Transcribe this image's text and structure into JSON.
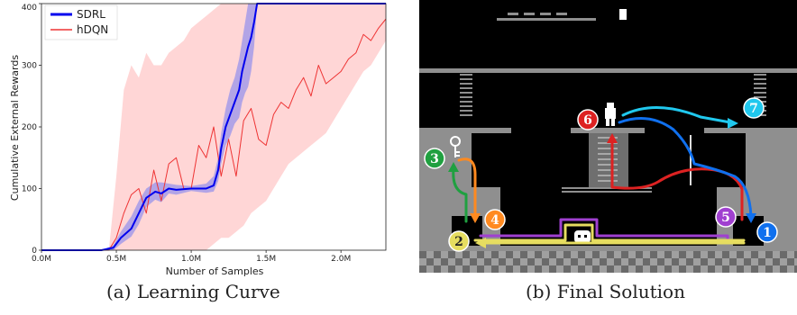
{
  "captions": {
    "a": "(a) Learning Curve",
    "b": "(b) Final Solution"
  },
  "chart_data": {
    "type": "line",
    "xlabel": "Number of Samples",
    "ylabel": "Cumulative External Rewards",
    "xlim": [
      0,
      2300000
    ],
    "ylim": [
      0,
      400
    ],
    "x_ticks": [
      0,
      500000,
      1000000,
      1500000,
      2000000
    ],
    "x_tick_labels": [
      "0.0M",
      "0.5M",
      "1.0M",
      "1.5M",
      "2.0M"
    ],
    "y_ticks": [
      0,
      100,
      200,
      300,
      400
    ],
    "y_tick_labels": [
      "0",
      "100",
      "200",
      "300",
      "400"
    ],
    "legend_position": "top-left",
    "grid": false,
    "series": [
      {
        "name": "SDRL",
        "color": "#0000ee",
        "band_color": "#8888ee",
        "x": [
          0,
          400000,
          480000,
          530000,
          600000,
          650000,
          700000,
          760000,
          800000,
          850000,
          900000,
          1000000,
          1100000,
          1150000,
          1180000,
          1200000,
          1230000,
          1260000,
          1290000,
          1320000,
          1340000,
          1360000,
          1380000,
          1400000,
          1420000,
          1440000,
          2300000
        ],
        "y": [
          0,
          0,
          4,
          20,
          35,
          60,
          85,
          95,
          92,
          100,
          98,
          100,
          100,
          105,
          130,
          165,
          200,
          220,
          240,
          260,
          290,
          310,
          330,
          345,
          370,
          400,
          400
        ],
        "upper": [
          0,
          0,
          8,
          30,
          55,
          80,
          100,
          110,
          110,
          108,
          106,
          104,
          108,
          120,
          150,
          190,
          230,
          260,
          280,
          310,
          340,
          370,
          400,
          400,
          400,
          400,
          400
        ],
        "lower": [
          0,
          0,
          0,
          10,
          22,
          42,
          70,
          82,
          78,
          92,
          90,
          96,
          93,
          95,
          112,
          140,
          170,
          185,
          205,
          215,
          240,
          255,
          265,
          290,
          330,
          400,
          400
        ]
      },
      {
        "name": "hDQN",
        "color": "#ee3333",
        "band_color": "#ffcccc",
        "x": [
          0,
          450000,
          500000,
          550000,
          600000,
          650000,
          700000,
          750000,
          800000,
          850000,
          900000,
          950000,
          1000000,
          1050000,
          1100000,
          1150000,
          1200000,
          1250000,
          1300000,
          1350000,
          1400000,
          1450000,
          1500000,
          1550000,
          1600000,
          1650000,
          1700000,
          1750000,
          1800000,
          1850000,
          1900000,
          1950000,
          2000000,
          2050000,
          2100000,
          2150000,
          2200000,
          2250000,
          2300000
        ],
        "y": [
          0,
          0,
          20,
          60,
          90,
          100,
          60,
          130,
          80,
          140,
          150,
          100,
          100,
          170,
          150,
          200,
          120,
          180,
          120,
          210,
          230,
          180,
          170,
          220,
          240,
          230,
          260,
          280,
          250,
          300,
          270,
          280,
          290,
          310,
          320,
          350,
          340,
          360,
          375
        ],
        "upper": [
          0,
          0,
          120,
          260,
          300,
          280,
          320,
          300,
          300,
          320,
          330,
          340,
          360,
          370,
          380,
          390,
          400,
          400,
          400,
          400,
          400,
          400,
          400,
          400,
          400,
          400,
          400,
          400,
          400,
          400,
          400,
          400,
          400,
          400,
          400,
          400,
          400,
          400,
          400
        ],
        "lower": [
          0,
          0,
          0,
          0,
          0,
          0,
          0,
          0,
          0,
          0,
          0,
          0,
          0,
          0,
          0,
          10,
          20,
          20,
          30,
          40,
          60,
          70,
          80,
          100,
          120,
          140,
          150,
          160,
          170,
          180,
          190,
          210,
          230,
          250,
          270,
          290,
          300,
          320,
          340
        ]
      }
    ]
  },
  "game_labels": [
    "1",
    "2",
    "3",
    "4",
    "5",
    "6",
    "7"
  ],
  "game_colors": {
    "yellow": "#e6dd60",
    "purple": "#a040d0",
    "green": "#20a040",
    "orange": "#ff8a20",
    "red": "#dd2222",
    "blue": "#1070ee",
    "cyan": "#20c8ee",
    "platform": "#8f8f8f"
  }
}
